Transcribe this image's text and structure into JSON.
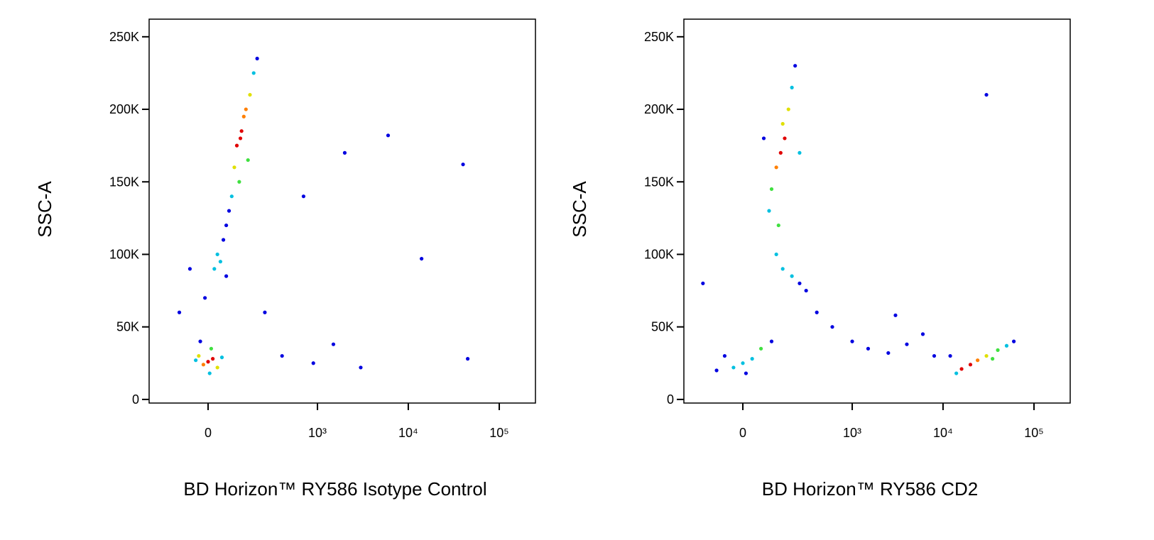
{
  "chart_data": [
    {
      "type": "scatter",
      "xlabel": "BD Horizon™ RY586 Isotype Control",
      "ylabel": "SSC-A",
      "xscale": "biexponential",
      "xlim": [
        -266,
        250000
      ],
      "ylim": [
        -2500,
        262144
      ],
      "xticks": [
        0,
        {
          "value": 1000,
          "label": "10³"
        },
        {
          "value": 10000,
          "label": "10⁴"
        },
        {
          "value": 100000,
          "label": "10⁵"
        }
      ],
      "yticks": [
        0,
        {
          "value": 50000,
          "label": "50K"
        },
        {
          "value": 100000,
          "label": "100K"
        },
        {
          "value": 150000,
          "label": "150K"
        },
        {
          "value": 200000,
          "label": "200K"
        },
        {
          "value": 250000,
          "label": "250K"
        }
      ],
      "x": [
        0,
        15,
        -15,
        30,
        -30,
        10,
        -40,
        45,
        5,
        -25,
        100,
        120,
        140,
        90,
        110,
        160,
        80,
        130,
        180,
        70,
        150,
        200,
        60,
        115,
        20,
        40,
        60,
        -10,
        30,
        50,
        250,
        400,
        900,
        1500,
        3000,
        6000,
        14000,
        40000,
        45000,
        -60,
        -100,
        700,
        2000
      ],
      "values": [
        26000,
        28000,
        24000,
        22000,
        30000,
        35000,
        27000,
        29000,
        18000,
        40000,
        175000,
        185000,
        200000,
        160000,
        150000,
        210000,
        140000,
        195000,
        225000,
        130000,
        165000,
        235000,
        120000,
        180000,
        90000,
        95000,
        85000,
        70000,
        100000,
        110000,
        60000,
        30000,
        25000,
        38000,
        22000,
        182000,
        97000,
        162000,
        28000,
        90000,
        60000,
        140000,
        170000
      ],
      "colors": [
        "#e00000",
        "#e00000",
        "#ff8000",
        "#e0e000",
        "#e0e000",
        "#40e040",
        "#00c0e0",
        "#00c0e0",
        "#00c0e0",
        "#0000e0",
        "#e00000",
        "#e00000",
        "#ff8000",
        "#e0e000",
        "#40e040",
        "#e0e000",
        "#00c0e0",
        "#ff8000",
        "#00c0e0",
        "#0000e0",
        "#40e040",
        "#0000e0",
        "#0000e0",
        "#e00000",
        "#00c0e0",
        "#00c0e0",
        "#0000e0",
        "#0000e0",
        "#00c0e0",
        "#0000e0",
        "#0000e0",
        "#0000e0",
        "#0000e0",
        "#0000e0",
        "#0000e0",
        "#0000e0",
        "#0000e0",
        "#0000e0",
        "#0000e0",
        "#0000e0",
        "#0000e0",
        "#0000e0",
        "#0000e0"
      ]
    },
    {
      "type": "scatter",
      "xlabel": "BD Horizon™ RY586 CD2",
      "ylabel": "SSC-A",
      "xscale": "biexponential",
      "xlim": [
        -266,
        250000
      ],
      "ylim": [
        -2500,
        262144
      ],
      "xticks": [
        0,
        {
          "value": 1000,
          "label": "10³"
        },
        {
          "value": 10000,
          "label": "10⁴"
        },
        {
          "value": 100000,
          "label": "10⁵"
        }
      ],
      "yticks": [
        0,
        {
          "value": 50000,
          "label": "50K"
        },
        {
          "value": 100000,
          "label": "100K"
        },
        {
          "value": 150000,
          "label": "150K"
        },
        {
          "value": 200000,
          "label": "200K"
        },
        {
          "value": 250000,
          "label": "250K"
        }
      ],
      "x": [
        0,
        30,
        -30,
        60,
        -60,
        100,
        10,
        -90,
        140,
        160,
        120,
        180,
        100,
        200,
        90,
        220,
        150,
        250,
        70,
        130,
        150,
        200,
        250,
        120,
        300,
        400,
        20000,
        16000,
        24000,
        30000,
        40000,
        50000,
        14000,
        60000,
        35000,
        12000,
        600,
        1000,
        1500,
        2500,
        4000,
        6000,
        8000,
        3000,
        30000,
        -150
      ],
      "values": [
        25000,
        28000,
        22000,
        35000,
        30000,
        40000,
        18000,
        20000,
        170000,
        180000,
        160000,
        200000,
        145000,
        215000,
        130000,
        230000,
        190000,
        170000,
        180000,
        120000,
        90000,
        85000,
        80000,
        100000,
        75000,
        60000,
        24000,
        21000,
        27000,
        30000,
        34000,
        37000,
        18000,
        40000,
        28000,
        30000,
        50000,
        40000,
        35000,
        32000,
        38000,
        45000,
        30000,
        58000,
        210000,
        80000
      ],
      "colors": [
        "#00c0e0",
        "#00c0e0",
        "#00c0e0",
        "#40e040",
        "#0000e0",
        "#0000e0",
        "#0000e0",
        "#0000e0",
        "#e00000",
        "#e00000",
        "#ff8000",
        "#e0e000",
        "#40e040",
        "#00c0e0",
        "#00c0e0",
        "#0000e0",
        "#e0e000",
        "#00c0e0",
        "#0000e0",
        "#40e040",
        "#00c0e0",
        "#00c0e0",
        "#0000e0",
        "#00c0e0",
        "#0000e0",
        "#0000e0",
        "#e00000",
        "#e00000",
        "#ff8000",
        "#e0e000",
        "#40e040",
        "#00c0e0",
        "#00c0e0",
        "#0000e0",
        "#40e040",
        "#0000e0",
        "#0000e0",
        "#0000e0",
        "#0000e0",
        "#0000e0",
        "#0000e0",
        "#0000e0",
        "#0000e0",
        "#0000e0",
        "#0000e0",
        "#0000e0"
      ]
    }
  ]
}
